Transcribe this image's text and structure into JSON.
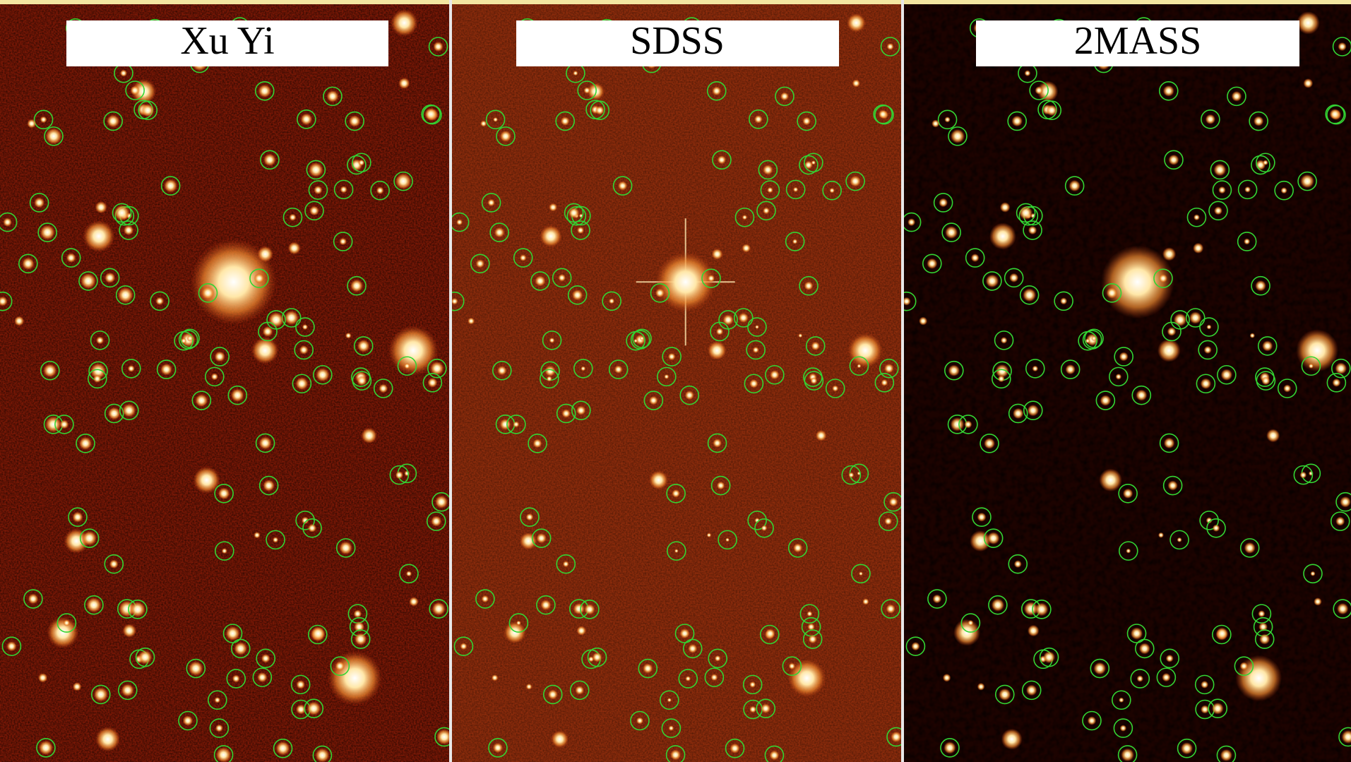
{
  "panels": [
    {
      "label": "Xu Yi"
    },
    {
      "label": "SDSS"
    },
    {
      "label": "2MASS"
    }
  ]
}
